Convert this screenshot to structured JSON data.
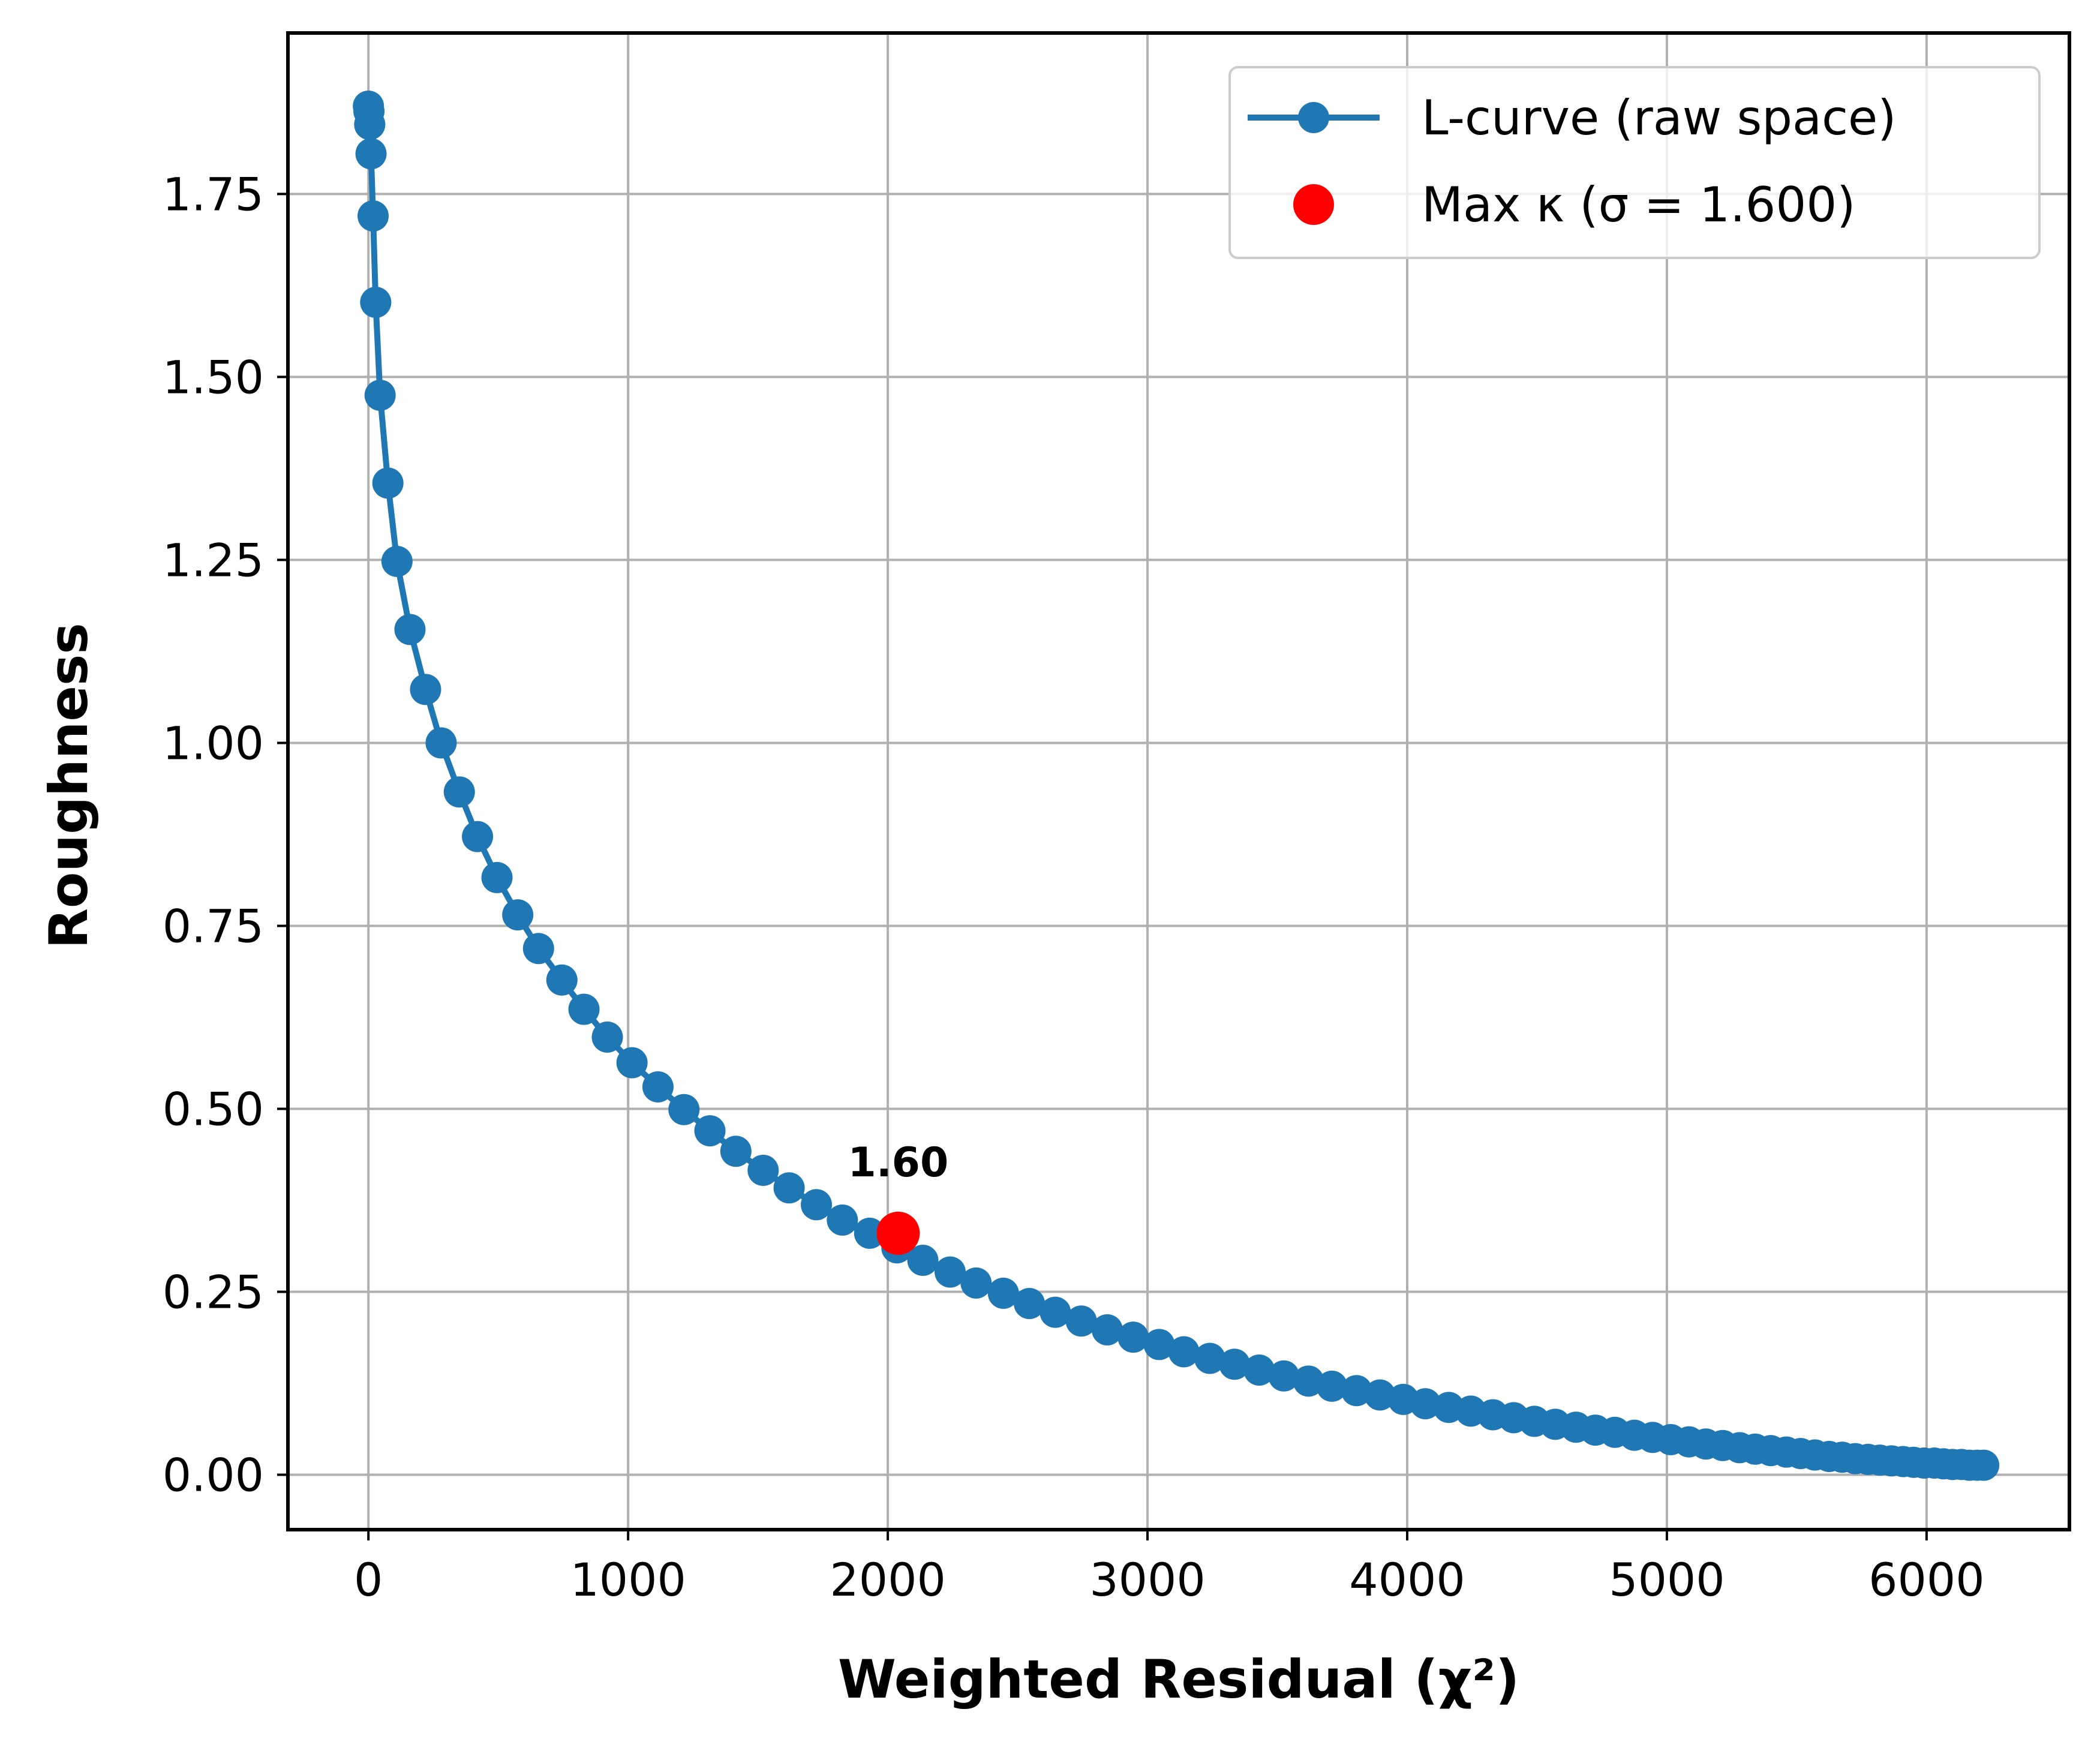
{
  "chart_data": {
    "type": "line",
    "xlabel": "Weighted Residual (χ²)",
    "ylabel": "Roughness",
    "xlim": [
      -310,
      6550
    ],
    "ylim": [
      -0.075,
      1.97
    ],
    "xticks": [
      0,
      1000,
      2000,
      3000,
      4000,
      5000,
      6000
    ],
    "xtick_labels": [
      "0",
      "1000",
      "2000",
      "3000",
      "4000",
      "5000",
      "6000"
    ],
    "yticks": [
      0.0,
      0.25,
      0.5,
      0.75,
      1.0,
      1.25,
      1.5,
      1.75
    ],
    "ytick_labels": [
      "0.00",
      "0.25",
      "0.50",
      "0.75",
      "1.00",
      "1.25",
      "1.50",
      "1.75"
    ],
    "grid": true,
    "legend_position": "top-right",
    "colors": {
      "line": "#1f77b4",
      "highlight": "#ff0000",
      "grid": "#b0b0b0"
    },
    "series": [
      {
        "name": "L-curve (raw space)",
        "marker": "circle",
        "x": [
          0,
          2,
          5,
          10,
          18,
          28,
          45,
          75,
          110,
          160,
          220,
          280,
          350,
          420,
          495,
          575,
          655,
          745,
          830,
          920,
          1015,
          1115,
          1215,
          1315,
          1415,
          1520,
          1620,
          1725,
          1825,
          1930,
          2035,
          2135,
          2240,
          2340,
          2445,
          2545,
          2645,
          2745,
          2845,
          2945,
          3045,
          3140,
          3240,
          3335,
          3430,
          3525,
          3620,
          3710,
          3805,
          3895,
          3985,
          4070,
          4160,
          4245,
          4330,
          4410,
          4490,
          4570,
          4650,
          4725,
          4800,
          4875,
          4945,
          5015,
          5085,
          5150,
          5215,
          5280,
          5340,
          5400,
          5460,
          5515,
          5570,
          5625,
          5675,
          5725,
          5775,
          5820,
          5865,
          5910,
          5950,
          5990,
          6030,
          6065,
          6100,
          6135,
          6165,
          6195,
          6220
        ],
        "y": [
          1.87,
          1.863,
          1.845,
          1.805,
          1.72,
          1.602,
          1.475,
          1.355,
          1.248,
          1.155,
          1.073,
          1.0,
          0.933,
          0.872,
          0.816,
          0.765,
          0.719,
          0.676,
          0.636,
          0.598,
          0.563,
          0.53,
          0.499,
          0.47,
          0.442,
          0.416,
          0.392,
          0.369,
          0.348,
          0.33,
          0.31,
          0.293,
          0.277,
          0.262,
          0.248,
          0.234,
          0.222,
          0.21,
          0.198,
          0.188,
          0.178,
          0.168,
          0.159,
          0.151,
          0.143,
          0.135,
          0.128,
          0.121,
          0.115,
          0.109,
          0.103,
          0.097,
          0.092,
          0.087,
          0.082,
          0.078,
          0.073,
          0.069,
          0.065,
          0.061,
          0.058,
          0.054,
          0.051,
          0.048,
          0.045,
          0.042,
          0.04,
          0.037,
          0.035,
          0.033,
          0.031,
          0.029,
          0.027,
          0.025,
          0.024,
          0.022,
          0.021,
          0.02,
          0.019,
          0.018,
          0.017,
          0.016,
          0.016,
          0.015,
          0.014,
          0.014,
          0.013,
          0.013,
          0.013
        ]
      },
      {
        "name": "Max κ (σ = 1.600)",
        "marker": "circle",
        "x": [
          2040
        ],
        "y": [
          0.33
        ]
      }
    ],
    "annotations": [
      {
        "text": "1.60",
        "x": 2040,
        "y": 0.33
      }
    ]
  }
}
